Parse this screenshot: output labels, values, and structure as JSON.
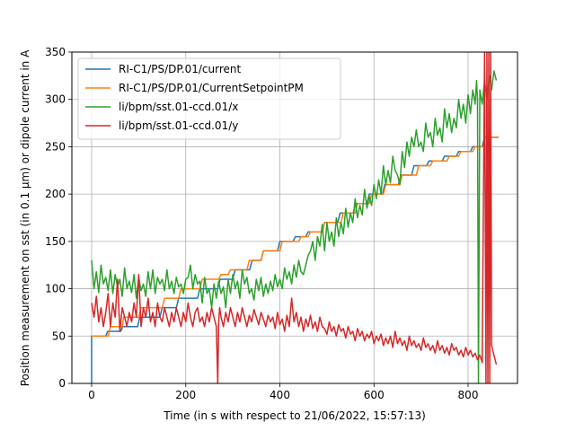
{
  "chart_data": {
    "type": "line",
    "title": "",
    "xlabel": "Time (in s with respect to 21/06/2022, 15:57:13)",
    "ylabel": "Position measurement on sst (in 0.1 μm) or dipole current in A",
    "xlim": [
      -42,
      905
    ],
    "ylim": [
      0,
      350
    ],
    "x_ticks": [
      0,
      200,
      400,
      600,
      800
    ],
    "y_ticks": [
      0,
      50,
      100,
      150,
      200,
      250,
      300,
      350
    ],
    "grid": true,
    "legend_position": "upper-left",
    "series": [
      {
        "name": "RI-C1/PS/DP.01/current",
        "color": "#1f77b4",
        "x": [
          0,
          0,
          3,
          30,
          34,
          62,
          66,
          98,
          102,
          145,
          150,
          180,
          185,
          225,
          230,
          268,
          273,
          300,
          305,
          336,
          341,
          360,
          365,
          395,
          400,
          428,
          433,
          455,
          460,
          490,
          495,
          523,
          528,
          556,
          561,
          585,
          590,
          618,
          623,
          652,
          657,
          680,
          685,
          712,
          717,
          745,
          750,
          775,
          780,
          805,
          810,
          830,
          835,
          860,
          865
        ],
        "y": [
          0,
          50,
          50,
          50,
          55,
          55,
          60,
          60,
          70,
          70,
          80,
          80,
          90,
          90,
          100,
          100,
          110,
          110,
          120,
          120,
          130,
          130,
          140,
          140,
          150,
          150,
          155,
          155,
          160,
          160,
          170,
          170,
          180,
          180,
          190,
          190,
          200,
          200,
          210,
          210,
          220,
          220,
          230,
          230,
          235,
          235,
          240,
          240,
          245,
          245,
          250,
          250,
          260,
          260,
          260
        ]
      },
      {
        "name": "RI-C1/PS/DP.01/CurrentSetpointPM",
        "color": "#ff7f0e",
        "x": [
          0,
          35,
          40,
          65,
          68,
          100,
          105,
          150,
          155,
          185,
          190,
          230,
          235,
          270,
          275,
          290,
          295,
          330,
          335,
          360,
          365,
          400,
          405,
          440,
          445,
          460,
          465,
          490,
          495,
          530,
          535,
          560,
          565,
          590,
          595,
          620,
          625,
          655,
          660,
          690,
          695,
          720,
          725,
          755,
          760,
          780,
          785,
          810,
          815,
          840,
          845,
          865
        ],
        "y": [
          50,
          50,
          60,
          60,
          70,
          70,
          80,
          80,
          90,
          90,
          100,
          100,
          110,
          110,
          115,
          115,
          120,
          120,
          130,
          130,
          140,
          140,
          150,
          150,
          155,
          155,
          160,
          160,
          170,
          170,
          180,
          180,
          190,
          190,
          200,
          200,
          210,
          210,
          220,
          220,
          230,
          230,
          235,
          235,
          240,
          240,
          245,
          245,
          250,
          250,
          260,
          260
        ]
      },
      {
        "name": "li/bpm/sst.01-ccd.01/x",
        "color": "#2ca02c",
        "x": [
          0,
          5,
          10,
          15,
          20,
          25,
          30,
          35,
          40,
          45,
          50,
          55,
          60,
          65,
          70,
          75,
          80,
          85,
          90,
          95,
          100,
          105,
          110,
          115,
          120,
          125,
          130,
          135,
          140,
          145,
          150,
          155,
          160,
          165,
          170,
          175,
          180,
          185,
          190,
          195,
          200,
          205,
          210,
          215,
          220,
          225,
          230,
          235,
          240,
          245,
          250,
          255,
          260,
          265,
          270,
          275,
          280,
          285,
          290,
          295,
          300,
          305,
          310,
          315,
          320,
          325,
          330,
          335,
          340,
          345,
          350,
          355,
          360,
          365,
          370,
          375,
          380,
          385,
          390,
          395,
          400,
          405,
          410,
          415,
          420,
          425,
          430,
          435,
          440,
          445,
          450,
          455,
          460,
          465,
          470,
          475,
          480,
          485,
          490,
          495,
          500,
          505,
          510,
          515,
          520,
          525,
          530,
          535,
          540,
          545,
          550,
          555,
          560,
          565,
          570,
          575,
          580,
          585,
          590,
          595,
          600,
          605,
          610,
          615,
          620,
          625,
          630,
          635,
          640,
          645,
          650,
          655,
          660,
          665,
          670,
          675,
          680,
          685,
          690,
          695,
          700,
          705,
          710,
          715,
          720,
          725,
          730,
          735,
          740,
          745,
          750,
          755,
          760,
          765,
          770,
          775,
          780,
          785,
          790,
          795,
          800,
          805,
          810,
          815,
          818,
          820,
          822,
          825,
          830,
          835,
          840,
          845,
          850,
          855,
          860
        ],
        "y": [
          130,
          100,
          118,
          96,
          125,
          105,
          112,
          98,
          120,
          95,
          115,
          102,
          110,
          92,
          122,
          100,
          108,
          96,
          115,
          90,
          112,
          98,
          105,
          92,
          118,
          100,
          120,
          95,
          112,
          105,
          110,
          98,
          120,
          100,
          108,
          95,
          112,
          102,
          105,
          95,
          110,
          112,
          125,
          100,
          115,
          105,
          108,
          85,
          112,
          95,
          100,
          80,
          105,
          90,
          108,
          95,
          102,
          80,
          110,
          95,
          115,
          100,
          108,
          90,
          120,
          105,
          112,
          95,
          100,
          88,
          110,
          98,
          112,
          92,
          105,
          95,
          108,
          98,
          115,
          102,
          110,
          100,
          122,
          110,
          118,
          105,
          125,
          112,
          130,
          118,
          115,
          125,
          135,
          140,
          150,
          130,
          155,
          145,
          168,
          140,
          170,
          150,
          160,
          145,
          175,
          155,
          170,
          158,
          185,
          165,
          180,
          170,
          195,
          175,
          188,
          178,
          205,
          185,
          198,
          188,
          210,
          195,
          215,
          200,
          230,
          210,
          225,
          212,
          240,
          225,
          220,
          210,
          245,
          228,
          255,
          240,
          260,
          250,
          268,
          250,
          255,
          245,
          275,
          260,
          265,
          250,
          280,
          262,
          270,
          255,
          290,
          270,
          285,
          265,
          280,
          270,
          300,
          280,
          295,
          275,
          305,
          285,
          310,
          295,
          320,
          300,
          0,
          310,
          295,
          320,
          300,
          325,
          310,
          330,
          320
        ]
      },
      {
        "name": "li/bpm/sst.01-ccd.01/y",
        "color": "#d62728",
        "x": [
          0,
          5,
          10,
          15,
          20,
          25,
          30,
          35,
          40,
          45,
          50,
          55,
          60,
          65,
          70,
          75,
          80,
          85,
          90,
          95,
          100,
          105,
          110,
          115,
          120,
          125,
          130,
          135,
          140,
          145,
          150,
          155,
          160,
          165,
          170,
          175,
          180,
          185,
          190,
          195,
          200,
          205,
          210,
          215,
          220,
          225,
          230,
          235,
          240,
          245,
          250,
          255,
          260,
          265,
          268,
          270,
          272,
          275,
          280,
          285,
          290,
          295,
          300,
          305,
          310,
          315,
          320,
          325,
          330,
          335,
          340,
          345,
          350,
          355,
          360,
          365,
          370,
          375,
          380,
          385,
          390,
          395,
          400,
          405,
          410,
          415,
          420,
          425,
          430,
          435,
          440,
          445,
          450,
          455,
          460,
          465,
          470,
          475,
          480,
          485,
          490,
          495,
          500,
          505,
          510,
          515,
          520,
          525,
          530,
          535,
          540,
          545,
          550,
          555,
          560,
          565,
          570,
          575,
          580,
          585,
          590,
          595,
          600,
          605,
          610,
          615,
          620,
          625,
          630,
          635,
          640,
          645,
          650,
          655,
          660,
          665,
          670,
          675,
          680,
          685,
          690,
          695,
          700,
          705,
          710,
          715,
          720,
          725,
          730,
          735,
          740,
          745,
          750,
          755,
          760,
          765,
          770,
          775,
          780,
          785,
          790,
          795,
          800,
          805,
          810,
          815,
          820,
          825,
          830,
          835,
          838,
          840,
          842,
          844,
          846,
          848,
          850,
          855,
          860
        ],
        "y": [
          85,
          70,
          92,
          65,
          80,
          60,
          75,
          95,
          60,
          85,
          70,
          110,
          55,
          80,
          70,
          60,
          75,
          65,
          85,
          70,
          115,
          60,
          80,
          70,
          90,
          65,
          75,
          60,
          85,
          70,
          65,
          80,
          70,
          60,
          75,
          65,
          80,
          70,
          60,
          75,
          65,
          85,
          70,
          60,
          75,
          80,
          65,
          70,
          60,
          75,
          65,
          80,
          70,
          60,
          0,
          65,
          80,
          70,
          60,
          75,
          65,
          80,
          70,
          60,
          75,
          65,
          80,
          70,
          60,
          72,
          65,
          78,
          70,
          62,
          75,
          68,
          60,
          72,
          65,
          70,
          58,
          75,
          62,
          68,
          55,
          72,
          60,
          90,
          65,
          75,
          60,
          70,
          55,
          68,
          60,
          72,
          58,
          65,
          55,
          70,
          60,
          58,
          52,
          65,
          55,
          60,
          50,
          62,
          55,
          58,
          48,
          60,
          52,
          55,
          45,
          58,
          50,
          55,
          45,
          52,
          48,
          55,
          42,
          50,
          45,
          52,
          40,
          48,
          42,
          50,
          38,
          55,
          42,
          48,
          40,
          45,
          35,
          50,
          40,
          45,
          38,
          42,
          35,
          48,
          38,
          42,
          35,
          40,
          32,
          45,
          35,
          40,
          32,
          38,
          30,
          42,
          35,
          38,
          30,
          35,
          28,
          38,
          30,
          35,
          28,
          32,
          25,
          30,
          22,
          350,
          0,
          350,
          0,
          350,
          0,
          350,
          40,
          30,
          20
        ]
      }
    ]
  }
}
